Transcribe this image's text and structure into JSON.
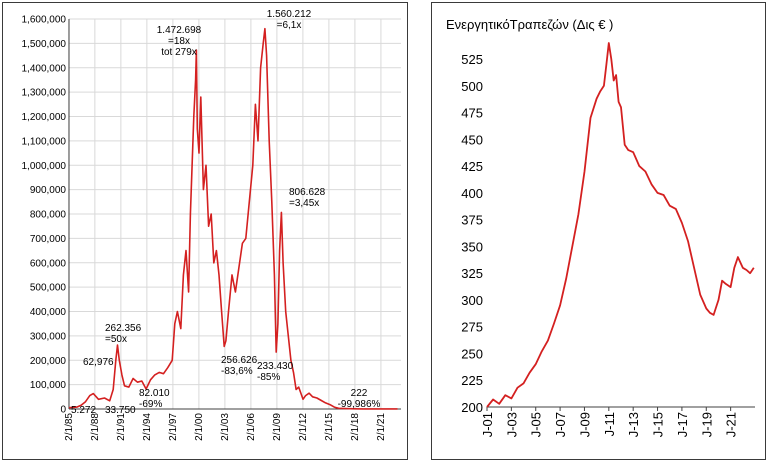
{
  "colors": {
    "line": "#d42020",
    "grid": "#d9d9d9",
    "axis": "#404040",
    "frame": "#3a3a3a"
  },
  "chart_data": [
    {
      "type": "line",
      "title": "",
      "xlabel": "",
      "ylabel": "",
      "ylim": [
        0,
        1600000
      ],
      "xlim": [
        "1985-02-01",
        "2023-06-01"
      ],
      "grid": true,
      "y_tick_labels": [
        "0",
        "100,000",
        "200,000",
        "300,000",
        "400,000",
        "500,000",
        "600,000",
        "700,000",
        "800,000",
        "900,000",
        "1,000,000",
        "1,100,000",
        "1,200,000",
        "1,300,000",
        "1,400,000",
        "1,500,000",
        "1,600,000"
      ],
      "x_tick_labels": [
        "2/1/85",
        "2/1/88",
        "2/1/91",
        "2/1/94",
        "2/1/97",
        "2/1/00",
        "2/1/03",
        "2/1/06",
        "2/1/09",
        "2/1/12",
        "2/1/15",
        "2/1/18",
        "2/1/21"
      ],
      "series": [
        {
          "x": [
            1985.1,
            1986.0,
            1986.5,
            1987.0,
            1987.5,
            1987.9,
            1988.5,
            1989.2,
            1989.8,
            1990.2,
            1990.5,
            1990.7,
            1990.9,
            1991.2,
            1991.5,
            1992.0,
            1992.5,
            1993.0,
            1993.5,
            1994.0,
            1994.5,
            1995.0,
            1995.5,
            1996.0,
            1996.5,
            1997.0,
            1997.3,
            1997.6,
            1998.0,
            1998.3,
            1998.6,
            1998.9,
            1999.1,
            1999.3,
            1999.5,
            1999.7,
            1999.8,
            1999.9,
            2000.1,
            2000.3,
            2000.6,
            2000.9,
            2001.2,
            2001.5,
            2001.8,
            2002.1,
            2002.4,
            2002.7,
            2003.0,
            2003.2,
            2003.5,
            2003.9,
            2004.3,
            2004.7,
            2005.1,
            2005.5,
            2005.9,
            2006.3,
            2006.6,
            2006.9,
            2007.2,
            2007.5,
            2007.7,
            2007.9,
            2008.2,
            2008.5,
            2008.8,
            2009.0,
            2009.2,
            2009.4,
            2009.6,
            2009.8,
            2010.1,
            2010.4,
            2010.7,
            2011.0,
            2011.3,
            2011.6,
            2011.9,
            2012.1,
            2012.4,
            2012.8,
            2013.2,
            2013.7,
            2014.2,
            2014.7,
            2015.2,
            2015.7,
            2016.2,
            2017.0,
            2018.0,
            2019.0,
            2020.0,
            2021.0,
            2022.0,
            2023.0
          ],
          "y": [
            5272,
            8000,
            15000,
            30000,
            55000,
            62976,
            40000,
            45000,
            33750,
            80000,
            200000,
            262356,
            200000,
            140000,
            95000,
            90000,
            125000,
            110000,
            115000,
            82010,
            120000,
            140000,
            150000,
            145000,
            170000,
            200000,
            350000,
            400000,
            330000,
            550000,
            650000,
            480000,
            800000,
            1000000,
            1200000,
            1350000,
            1472698,
            1150000,
            1050000,
            1280000,
            900000,
            1000000,
            750000,
            800000,
            600000,
            650000,
            550000,
            400000,
            256626,
            280000,
            400000,
            550000,
            480000,
            580000,
            680000,
            700000,
            850000,
            1000000,
            1250000,
            1100000,
            1400000,
            1500000,
            1560212,
            1450000,
            1100000,
            850000,
            550000,
            233430,
            350000,
            650000,
            806628,
            600000,
            400000,
            300000,
            200000,
            150000,
            80000,
            90000,
            60000,
            40000,
            55000,
            65000,
            50000,
            45000,
            35000,
            25000,
            18000,
            8000,
            3000,
            1500,
            800,
            600,
            400,
            300,
            250,
            222
          ]
        }
      ],
      "annotations": [
        {
          "lines": [
            "5.272"
          ]
        },
        {
          "lines": [
            "62,976"
          ]
        },
        {
          "lines": [
            "33.750"
          ]
        },
        {
          "lines": [
            "262.356",
            "=50x"
          ]
        },
        {
          "lines": [
            "82.010",
            "-69%"
          ]
        },
        {
          "lines": [
            "1.472.698",
            "=18x",
            "tot 279x"
          ]
        },
        {
          "lines": [
            "256.626",
            "-83,6%"
          ]
        },
        {
          "lines": [
            "1.560.212",
            "=6,1x"
          ]
        },
        {
          "lines": [
            "806.628",
            "=3,45x"
          ]
        },
        {
          "lines": [
            "233.430",
            "-85%"
          ]
        },
        {
          "lines": [
            "222",
            "-99,986%"
          ]
        }
      ]
    },
    {
      "type": "line",
      "title": "ΕνεργητικόΤραπεζών (Δις € )",
      "xlabel": "",
      "ylabel": "",
      "ylim": [
        200,
        540
      ],
      "xlim": [
        "2001-01",
        "2022-12"
      ],
      "grid": false,
      "y_tick_labels": [
        "200",
        "225",
        "250",
        "275",
        "300",
        "325",
        "350",
        "375",
        "400",
        "425",
        "450",
        "475",
        "500",
        "525"
      ],
      "x_tick_labels": [
        "J-01",
        "J-03",
        "J-05",
        "J-07",
        "J-09",
        "J-11",
        "J-13",
        "J-15",
        "J-17",
        "J-19",
        "J-21"
      ],
      "series": [
        {
          "x": [
            2001.0,
            2001.5,
            2002.0,
            2002.5,
            2003.0,
            2003.5,
            2004.0,
            2004.5,
            2005.0,
            2005.5,
            2006.0,
            2006.5,
            2007.0,
            2007.5,
            2008.0,
            2008.5,
            2009.0,
            2009.5,
            2010.0,
            2010.3,
            2010.6,
            2010.8,
            2011.0,
            2011.2,
            2011.4,
            2011.6,
            2011.8,
            2012.0,
            2012.3,
            2012.6,
            2013.0,
            2013.5,
            2014.0,
            2014.5,
            2015.0,
            2015.5,
            2016.0,
            2016.5,
            2017.0,
            2017.5,
            2018.0,
            2018.5,
            2019.0,
            2019.3,
            2019.6,
            2020.0,
            2020.3,
            2020.6,
            2021.0,
            2021.3,
            2021.6,
            2022.0,
            2022.3,
            2022.6,
            2022.9
          ],
          "y": [
            200,
            207,
            203,
            211,
            208,
            218,
            222,
            232,
            240,
            252,
            262,
            278,
            295,
            320,
            350,
            380,
            420,
            470,
            488,
            495,
            500,
            520,
            540,
            525,
            505,
            510,
            485,
            480,
            445,
            440,
            438,
            425,
            420,
            408,
            400,
            398,
            388,
            385,
            372,
            355,
            330,
            305,
            292,
            288,
            286,
            300,
            318,
            315,
            312,
            330,
            340,
            330,
            328,
            325,
            330
          ]
        }
      ]
    }
  ]
}
